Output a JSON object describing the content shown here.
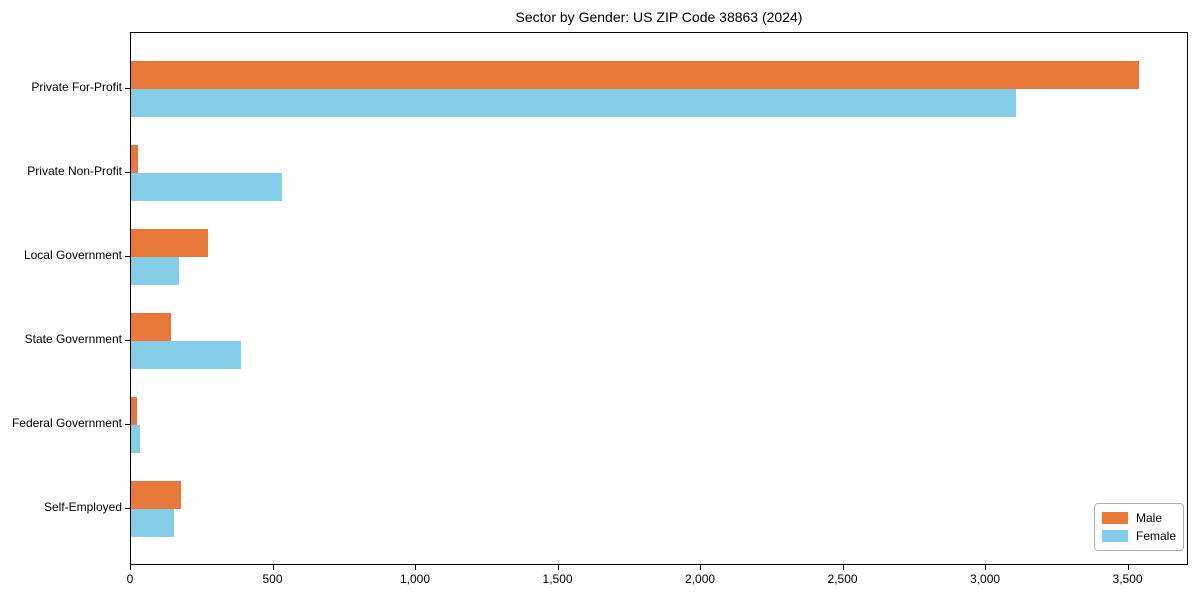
{
  "title": "Sector by Gender: US ZIP Code 38863 (2024)",
  "colors": {
    "male": "#E8793B",
    "female": "#85CEE8",
    "axis": "#000000",
    "legend_border": "#b0b0b0",
    "background": "#ffffff"
  },
  "legend": {
    "position": "lower right",
    "items": [
      {
        "label": "Male",
        "color": "#E8793B"
      },
      {
        "label": "Female",
        "color": "#85CEE8"
      }
    ]
  },
  "chart_data": {
    "type": "bar",
    "orientation": "horizontal",
    "title": "Sector by Gender: US ZIP Code 38863 (2024)",
    "categories": [
      "Private For-Profit",
      "Private Non-Profit",
      "Local Government",
      "State Government",
      "Federal Government",
      "Self-Employed"
    ],
    "series": [
      {
        "name": "Male",
        "color": "#E8793B",
        "values": [
          3535,
          25,
          270,
          140,
          20,
          175
        ]
      },
      {
        "name": "Female",
        "color": "#85CEE8",
        "values": [
          3105,
          530,
          170,
          385,
          30,
          150
        ]
      }
    ],
    "xlabel": "",
    "ylabel": "",
    "xlim": [
      0,
      3712
    ],
    "x_ticks": [
      0,
      500,
      1000,
      1500,
      2000,
      2500,
      3000,
      3500
    ],
    "x_tick_labels": [
      "0",
      "500",
      "1,000",
      "1,500",
      "2,000",
      "2,500",
      "3,000",
      "3,500"
    ],
    "grid": false,
    "legend_position": "lower right"
  }
}
